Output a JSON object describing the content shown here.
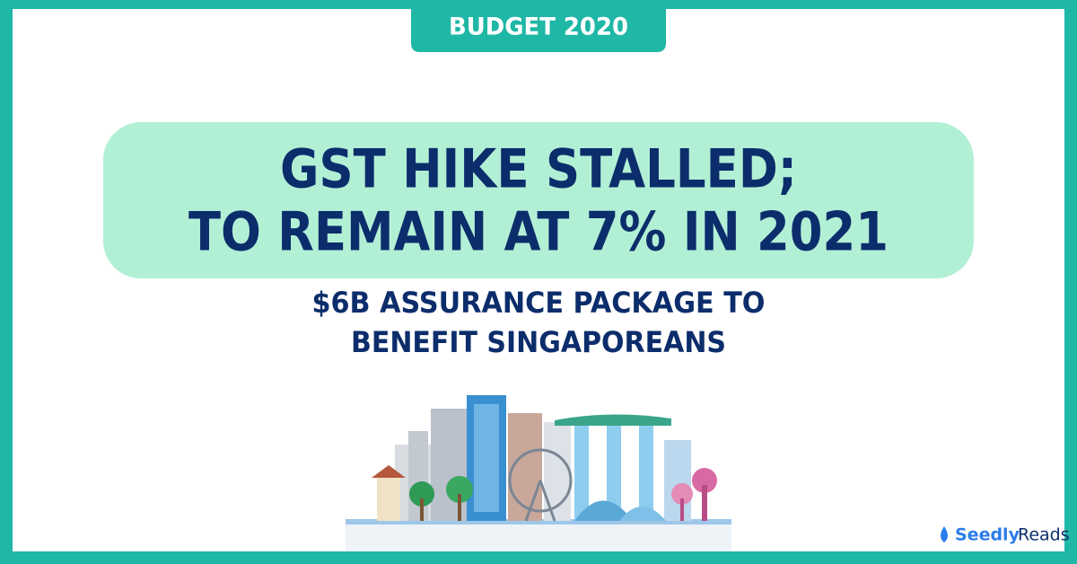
{
  "tag": "BUDGET 2020",
  "headline": [
    "GST HIKE STALLED;",
    "TO REMAIN AT 7% IN 2021"
  ],
  "subtitle": [
    "$6B ASSURANCE PACKAGE TO",
    "BENEFIT SINGAPOREANS"
  ],
  "brand": {
    "name": "Seedly",
    "suffix": "Reads"
  }
}
